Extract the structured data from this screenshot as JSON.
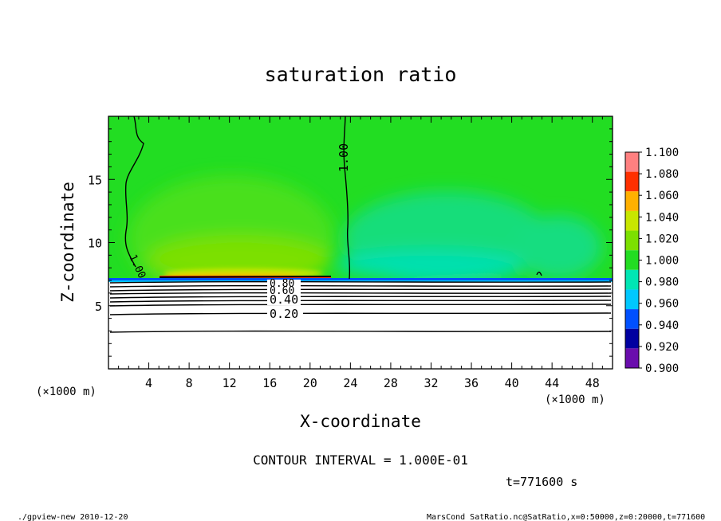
{
  "chart_data": {
    "type": "heatmap",
    "title": "saturation ratio",
    "xlabel": "X-coordinate",
    "ylabel": "Z-coordinate",
    "x_unit": "(×1000 m)",
    "y_unit": "(×1000 m)",
    "xlim": [
      0,
      50
    ],
    "ylim": [
      0,
      20
    ],
    "x_ticks": [
      "4",
      "8",
      "12",
      "16",
      "20",
      "24",
      "28",
      "32",
      "36",
      "40",
      "44",
      "48"
    ],
    "y_ticks": [
      "5",
      "10",
      "15"
    ],
    "colorbar": {
      "levels": [
        "0.900",
        "0.920",
        "0.940",
        "0.960",
        "0.980",
        "1.000",
        "1.020",
        "1.040",
        "1.060",
        "1.080",
        "1.100"
      ],
      "colors": [
        "#6a0dad",
        "#0000a0",
        "#0050ff",
        "#00c8ff",
        "#00e6b4",
        "#22dd22",
        "#7ce000",
        "#c8e600",
        "#ffb000",
        "#ff3000",
        "#ff8080"
      ]
    },
    "contour_labels": [
      "1.00",
      "1.00",
      "0.80",
      "0.60",
      "0.40",
      "0.20"
    ],
    "contour_interval_text": "CONTOUR INTERVAL = 1.000E-01",
    "time_text": "t=771600 s",
    "footer_left": "./gpview-new  2010-12-20",
    "footer_right": "MarsCond_SatRatio.nc@SatRatio,x=0:50000,z=0:20000,t=771600",
    "grid": false
  }
}
